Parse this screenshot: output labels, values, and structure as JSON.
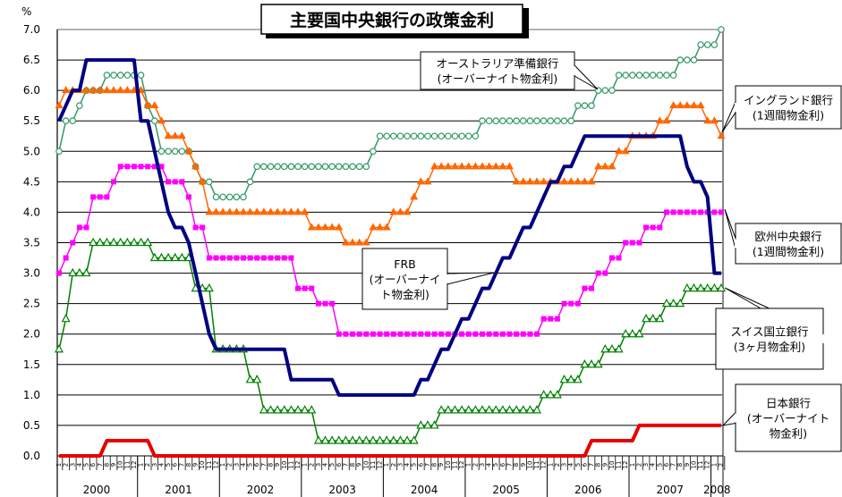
{
  "chart_data": {
    "type": "line",
    "title": "主要国中央銀行の政策金利",
    "ylabel": "%",
    "ylim": [
      0,
      7.0
    ],
    "yticks": [
      "0.0",
      "0.5",
      "1.0",
      "1.5",
      "2.0",
      "2.5",
      "3.0",
      "3.5",
      "4.0",
      "4.5",
      "5.0",
      "5.5",
      "6.0",
      "6.5",
      "7.0"
    ],
    "grid": true,
    "x_start": "2000-01",
    "x_frequency": "monthly",
    "years": [
      "2000",
      "2001",
      "2002",
      "2003",
      "2004",
      "2005",
      "2006",
      "2007",
      "2008"
    ],
    "months": [
      "1",
      "2",
      "3",
      "4",
      "5",
      "6",
      "7",
      "8",
      "9",
      "10",
      "11",
      "12"
    ],
    "series": [
      {
        "name": "FRB",
        "label_lines": [
          "FRB",
          "(オーバーナイ",
          "ト物金利)"
        ],
        "color": "#000080",
        "marker": "none",
        "width": 4,
        "values": [
          5.5,
          5.75,
          6.0,
          6.0,
          6.5,
          6.5,
          6.5,
          6.5,
          6.5,
          6.5,
          6.5,
          6.5,
          5.5,
          5.5,
          5.0,
          4.5,
          4.0,
          3.75,
          3.75,
          3.5,
          3.0,
          2.5,
          2.0,
          1.75,
          1.75,
          1.75,
          1.75,
          1.75,
          1.75,
          1.75,
          1.75,
          1.75,
          1.75,
          1.75,
          1.25,
          1.25,
          1.25,
          1.25,
          1.25,
          1.25,
          1.25,
          1.0,
          1.0,
          1.0,
          1.0,
          1.0,
          1.0,
          1.0,
          1.0,
          1.0,
          1.0,
          1.0,
          1.0,
          1.25,
          1.25,
          1.5,
          1.75,
          1.75,
          2.0,
          2.25,
          2.25,
          2.5,
          2.75,
          2.75,
          3.0,
          3.25,
          3.25,
          3.5,
          3.75,
          3.75,
          4.0,
          4.25,
          4.5,
          4.5,
          4.75,
          4.75,
          5.0,
          5.25,
          5.25,
          5.25,
          5.25,
          5.25,
          5.25,
          5.25,
          5.25,
          5.25,
          5.25,
          5.25,
          5.25,
          5.25,
          5.25,
          5.25,
          4.75,
          4.5,
          4.5,
          4.25,
          3.0,
          3.0
        ]
      },
      {
        "name": "オーストラリア準備銀行",
        "label_lines": [
          "オーストラリア準備銀行",
          "(オーバーナイト物金利)"
        ],
        "color": "#339966",
        "marker": "circle",
        "width": 1.5,
        "values": [
          5.0,
          5.5,
          5.5,
          5.75,
          6.0,
          6.0,
          6.0,
          6.25,
          6.25,
          6.25,
          6.25,
          6.25,
          6.25,
          5.75,
          5.5,
          5.0,
          5.0,
          5.0,
          5.0,
          5.0,
          4.75,
          4.5,
          4.5,
          4.25,
          4.25,
          4.25,
          4.25,
          4.25,
          4.5,
          4.75,
          4.75,
          4.75,
          4.75,
          4.75,
          4.75,
          4.75,
          4.75,
          4.75,
          4.75,
          4.75,
          4.75,
          4.75,
          4.75,
          4.75,
          4.75,
          4.75,
          5.0,
          5.25,
          5.25,
          5.25,
          5.25,
          5.25,
          5.25,
          5.25,
          5.25,
          5.25,
          5.25,
          5.25,
          5.25,
          5.25,
          5.25,
          5.25,
          5.5,
          5.5,
          5.5,
          5.5,
          5.5,
          5.5,
          5.5,
          5.5,
          5.5,
          5.5,
          5.5,
          5.5,
          5.5,
          5.5,
          5.75,
          5.75,
          5.75,
          6.0,
          6.0,
          6.0,
          6.25,
          6.25,
          6.25,
          6.25,
          6.25,
          6.25,
          6.25,
          6.25,
          6.25,
          6.5,
          6.5,
          6.5,
          6.75,
          6.75,
          6.75,
          7.0
        ]
      },
      {
        "name": "イングランド銀行",
        "label_lines": [
          "イングランド銀行",
          "(1週間物金利)"
        ],
        "color": "#ff6600",
        "marker": "triangle-filled",
        "width": 1.5,
        "values": [
          5.75,
          6.0,
          6.0,
          6.0,
          6.0,
          6.0,
          6.0,
          6.0,
          6.0,
          6.0,
          6.0,
          6.0,
          6.0,
          5.75,
          5.75,
          5.5,
          5.25,
          5.25,
          5.25,
          5.0,
          4.75,
          4.5,
          4.0,
          4.0,
          4.0,
          4.0,
          4.0,
          4.0,
          4.0,
          4.0,
          4.0,
          4.0,
          4.0,
          4.0,
          4.0,
          4.0,
          4.0,
          3.75,
          3.75,
          3.75,
          3.75,
          3.75,
          3.5,
          3.5,
          3.5,
          3.5,
          3.75,
          3.75,
          3.75,
          4.0,
          4.0,
          4.0,
          4.25,
          4.5,
          4.5,
          4.75,
          4.75,
          4.75,
          4.75,
          4.75,
          4.75,
          4.75,
          4.75,
          4.75,
          4.75,
          4.75,
          4.75,
          4.5,
          4.5,
          4.5,
          4.5,
          4.5,
          4.5,
          4.5,
          4.5,
          4.5,
          4.5,
          4.5,
          4.5,
          4.75,
          4.75,
          4.75,
          5.0,
          5.0,
          5.25,
          5.25,
          5.25,
          5.25,
          5.5,
          5.5,
          5.75,
          5.75,
          5.75,
          5.75,
          5.75,
          5.5,
          5.5,
          5.25
        ]
      },
      {
        "name": "欧州中央銀行",
        "label_lines": [
          "欧州中央銀行",
          "(1週間物金利)"
        ],
        "color": "#ff00ff",
        "marker": "square",
        "width": 1.5,
        "values": [
          3.0,
          3.25,
          3.5,
          3.75,
          3.75,
          4.25,
          4.25,
          4.25,
          4.5,
          4.75,
          4.75,
          4.75,
          4.75,
          4.75,
          4.75,
          4.75,
          4.5,
          4.5,
          4.5,
          4.25,
          3.75,
          3.75,
          3.25,
          3.25,
          3.25,
          3.25,
          3.25,
          3.25,
          3.25,
          3.25,
          3.25,
          3.25,
          3.25,
          3.25,
          3.25,
          2.75,
          2.75,
          2.75,
          2.5,
          2.5,
          2.5,
          2.0,
          2.0,
          2.0,
          2.0,
          2.0,
          2.0,
          2.0,
          2.0,
          2.0,
          2.0,
          2.0,
          2.0,
          2.0,
          2.0,
          2.0,
          2.0,
          2.0,
          2.0,
          2.0,
          2.0,
          2.0,
          2.0,
          2.0,
          2.0,
          2.0,
          2.0,
          2.0,
          2.0,
          2.0,
          2.0,
          2.25,
          2.25,
          2.25,
          2.5,
          2.5,
          2.5,
          2.75,
          2.75,
          3.0,
          3.0,
          3.25,
          3.25,
          3.5,
          3.5,
          3.5,
          3.75,
          3.75,
          3.75,
          4.0,
          4.0,
          4.0,
          4.0,
          4.0,
          4.0,
          4.0,
          4.0,
          4.0
        ]
      },
      {
        "name": "スイス国立銀行",
        "label_lines": [
          "スイス国立銀行",
          "(3ヶ月物金利)"
        ],
        "color": "#008000",
        "marker": "triangle-open",
        "width": 1.5,
        "values": [
          1.75,
          2.25,
          3.0,
          3.0,
          3.0,
          3.5,
          3.5,
          3.5,
          3.5,
          3.5,
          3.5,
          3.5,
          3.5,
          3.5,
          3.25,
          3.25,
          3.25,
          3.25,
          3.25,
          3.25,
          2.75,
          2.75,
          2.75,
          1.75,
          1.75,
          1.75,
          1.75,
          1.75,
          1.25,
          1.25,
          0.75,
          0.75,
          0.75,
          0.75,
          0.75,
          0.75,
          0.75,
          0.75,
          0.25,
          0.25,
          0.25,
          0.25,
          0.25,
          0.25,
          0.25,
          0.25,
          0.25,
          0.25,
          0.25,
          0.25,
          0.25,
          0.25,
          0.25,
          0.5,
          0.5,
          0.5,
          0.75,
          0.75,
          0.75,
          0.75,
          0.75,
          0.75,
          0.75,
          0.75,
          0.75,
          0.75,
          0.75,
          0.75,
          0.75,
          0.75,
          0.75,
          1.0,
          1.0,
          1.0,
          1.25,
          1.25,
          1.25,
          1.5,
          1.5,
          1.5,
          1.75,
          1.75,
          1.75,
          2.0,
          2.0,
          2.0,
          2.25,
          2.25,
          2.25,
          2.5,
          2.5,
          2.5,
          2.75,
          2.75,
          2.75,
          2.75,
          2.75,
          2.75
        ]
      },
      {
        "name": "日本銀行",
        "label_lines": [
          "日本銀行",
          "(オーバーナイト",
          "物金利)"
        ],
        "color": "#e80000",
        "marker": "none",
        "width": 4,
        "values": [
          0,
          0,
          0,
          0,
          0,
          0,
          0,
          0.25,
          0.25,
          0.25,
          0.25,
          0.25,
          0.25,
          0.25,
          0,
          0,
          0,
          0,
          0,
          0,
          0,
          0,
          0,
          0,
          0,
          0,
          0,
          0,
          0,
          0,
          0,
          0,
          0,
          0,
          0,
          0,
          0,
          0,
          0,
          0,
          0,
          0,
          0,
          0,
          0,
          0,
          0,
          0,
          0,
          0,
          0,
          0,
          0,
          0,
          0,
          0,
          0,
          0,
          0,
          0,
          0,
          0,
          0,
          0,
          0,
          0,
          0,
          0,
          0,
          0,
          0,
          0,
          0,
          0,
          0,
          0,
          0,
          0,
          0.25,
          0.25,
          0.25,
          0.25,
          0.25,
          0.25,
          0.25,
          0.5,
          0.5,
          0.5,
          0.5,
          0.5,
          0.5,
          0.5,
          0.5,
          0.5,
          0.5,
          0.5,
          0.5,
          0.5
        ]
      }
    ]
  }
}
